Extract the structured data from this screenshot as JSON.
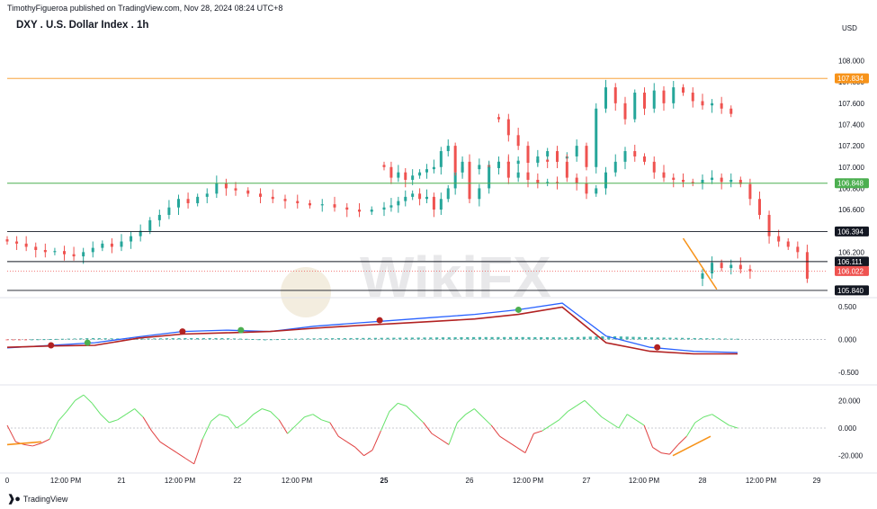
{
  "header": "TimothyFigueroa published on TradingView.com, Nov 28, 2024 08:24 UTC+8",
  "title": "DXY . U.S. Dollar Index . 1h",
  "currency": "USD",
  "footer": "TradingView",
  "watermark": "WikiFX",
  "colors": {
    "up": "#26a69a",
    "down": "#ef5350",
    "orange": "#f7931a",
    "green_line": "#4caf50",
    "black_line": "#131722",
    "red_dotted": "#ef5350",
    "grid": "#f0f3fa",
    "macd_line": "#2962ff",
    "signal_line": "#b22222",
    "rsi_up": "#66e36b",
    "rsi_down": "#e04040"
  },
  "chart_data": [
    {
      "type": "candlestick",
      "title": "DXY . U.S. Dollar Index . 1h",
      "ylabel": "USD",
      "ylim": [
        105.78,
        108.25
      ],
      "y_ticks": [
        "108.000",
        "107.800",
        "107.600",
        "107.400",
        "107.200",
        "107.000",
        "106.800",
        "106.600",
        "106.200"
      ],
      "x_ticks": [
        "0",
        "12:00 PM",
        "21",
        "12:00 PM",
        "22",
        "12:00 PM",
        "25",
        "26",
        "12:00 PM",
        "27",
        "12:00 PM",
        "28",
        "12:00 PM",
        "29"
      ],
      "horizontal_lines": [
        {
          "value": 107.834,
          "label": "107.834",
          "color": "#f7931a",
          "style": "solid"
        },
        {
          "value": 106.848,
          "label": "106.848",
          "color": "#4caf50",
          "style": "solid"
        },
        {
          "value": 106.394,
          "label": "106.394",
          "color": "#131722",
          "style": "solid"
        },
        {
          "value": 106.111,
          "label": "106.111",
          "color": "#131722",
          "style": "solid"
        },
        {
          "value": 106.022,
          "label": "106.022",
          "color": "#ef5350",
          "style": "dotted"
        },
        {
          "value": 105.84,
          "label": "105.840",
          "color": "#131722",
          "style": "solid"
        }
      ],
      "trendline": {
        "points": [
          [
            106.33,
            "Nov 27 20:00"
          ],
          [
            105.85,
            "Nov 28 03:00"
          ]
        ],
        "color": "#f7931a"
      },
      "ohlc_segments": [
        {
          "start": "Nov 20 00:00",
          "closes": [
            106.3,
            106.28,
            106.25,
            106.22,
            106.2,
            106.21,
            106.18,
            106.16,
            106.2,
            106.24,
            106.28,
            106.25,
            106.3,
            106.35,
            106.4,
            106.5,
            106.55,
            106.62,
            106.7,
            106.66,
            106.72,
            106.75,
            106.85,
            106.8,
            106.78,
            106.75,
            106.72,
            106.7,
            106.68,
            106.66,
            106.64,
            106.65,
            106.62,
            106.6,
            106.58,
            106.6,
            106.62,
            106.64,
            106.68,
            106.72,
            106.75,
            106.7,
            106.72,
            106.6,
            106.7,
            106.8,
            106.95,
            107.0,
            106.98,
            107.02,
            106.99,
            107.05,
            107.03,
            107.06,
            107.04,
            107.07,
            107.05,
            107.08,
            107.1,
            107.2,
            107.0,
            107.55,
            107.75,
            107.6,
            107.45,
            107.7,
            107.55,
            107.72,
            107.6,
            107.75,
            107.7,
            107.62,
            107.58,
            107.6,
            107.55,
            107.5
          ]
        },
        {
          "start": "Nov 25 00:00",
          "closes": [
            107.0,
            106.9,
            106.95,
            106.88,
            106.92,
            106.95,
            106.98,
            107.0,
            107.15,
            107.2,
            106.95,
            107.05,
            106.7,
            106.8,
            107.0,
            107.05,
            106.9,
            106.95,
            106.88,
            106.85,
            106.86,
            106.85
          ]
        },
        {
          "start": "Nov 26 06:00",
          "closes": [
            107.45,
            107.3,
            107.2,
            107.05,
            107.1,
            107.15,
            107.05,
            106.9,
            106.85,
            106.75,
            106.8,
            106.95,
            107.05,
            107.15,
            107.1,
            107.05,
            106.95,
            106.9,
            106.88,
            106.86,
            106.85,
            106.88,
            106.9,
            106.86,
            106.88,
            106.84,
            106.7,
            106.55,
            106.35,
            106.3,
            106.25,
            106.2,
            105.95,
            106.0,
            106.1,
            106.05,
            106.08,
            106.04,
            106.02
          ]
        }
      ]
    },
    {
      "type": "line",
      "name_hint": "MACD panel",
      "ylim": [
        -0.65,
        0.62
      ],
      "y_ticks": [
        "0.500",
        "0.000",
        "-0.500"
      ],
      "points_x_fraction": [
        0,
        0.06,
        0.12,
        0.18,
        0.24,
        0.3,
        0.36,
        0.42,
        0.48,
        0.53,
        0.58,
        0.64,
        0.7,
        0.76,
        0.82,
        0.88,
        0.94,
        1.0
      ],
      "macd": [
        -0.13,
        -0.09,
        -0.05,
        0.04,
        0.12,
        0.14,
        0.12,
        0.2,
        0.25,
        0.29,
        0.33,
        0.38,
        0.45,
        0.55,
        0.05,
        -0.12,
        -0.18,
        -0.2
      ],
      "signal": [
        -0.12,
        -0.1,
        -0.09,
        0.02,
        0.08,
        0.1,
        0.12,
        0.17,
        0.21,
        0.24,
        0.27,
        0.31,
        0.38,
        0.49,
        -0.05,
        -0.18,
        -0.22,
        -0.22
      ]
    },
    {
      "type": "line",
      "name_hint": "RSI-like oscillator",
      "ylim": [
        -30,
        30
      ],
      "y_ticks": [
        "20.000",
        "0.000",
        "-20.000"
      ],
      "values": [
        2,
        -10,
        -12,
        -13,
        -11,
        -8,
        5,
        12,
        20,
        24,
        18,
        10,
        4,
        6,
        10,
        14,
        8,
        -2,
        -10,
        -14,
        -18,
        -22,
        -26,
        -8,
        5,
        10,
        8,
        0,
        4,
        10,
        14,
        12,
        6,
        -4,
        2,
        8,
        10,
        6,
        4,
        -6,
        -10,
        -14,
        -20,
        -16,
        -2,
        12,
        18,
        16,
        10,
        4,
        -4,
        -8,
        -12,
        4,
        10,
        14,
        8,
        2,
        -6,
        -10,
        -14,
        -18,
        -4,
        -2,
        2,
        6,
        12,
        16,
        20,
        14,
        8,
        4,
        0,
        10,
        6,
        2,
        -14,
        -18,
        -19,
        -12,
        -6,
        4,
        8,
        10,
        6,
        2,
        0
      ]
    }
  ]
}
